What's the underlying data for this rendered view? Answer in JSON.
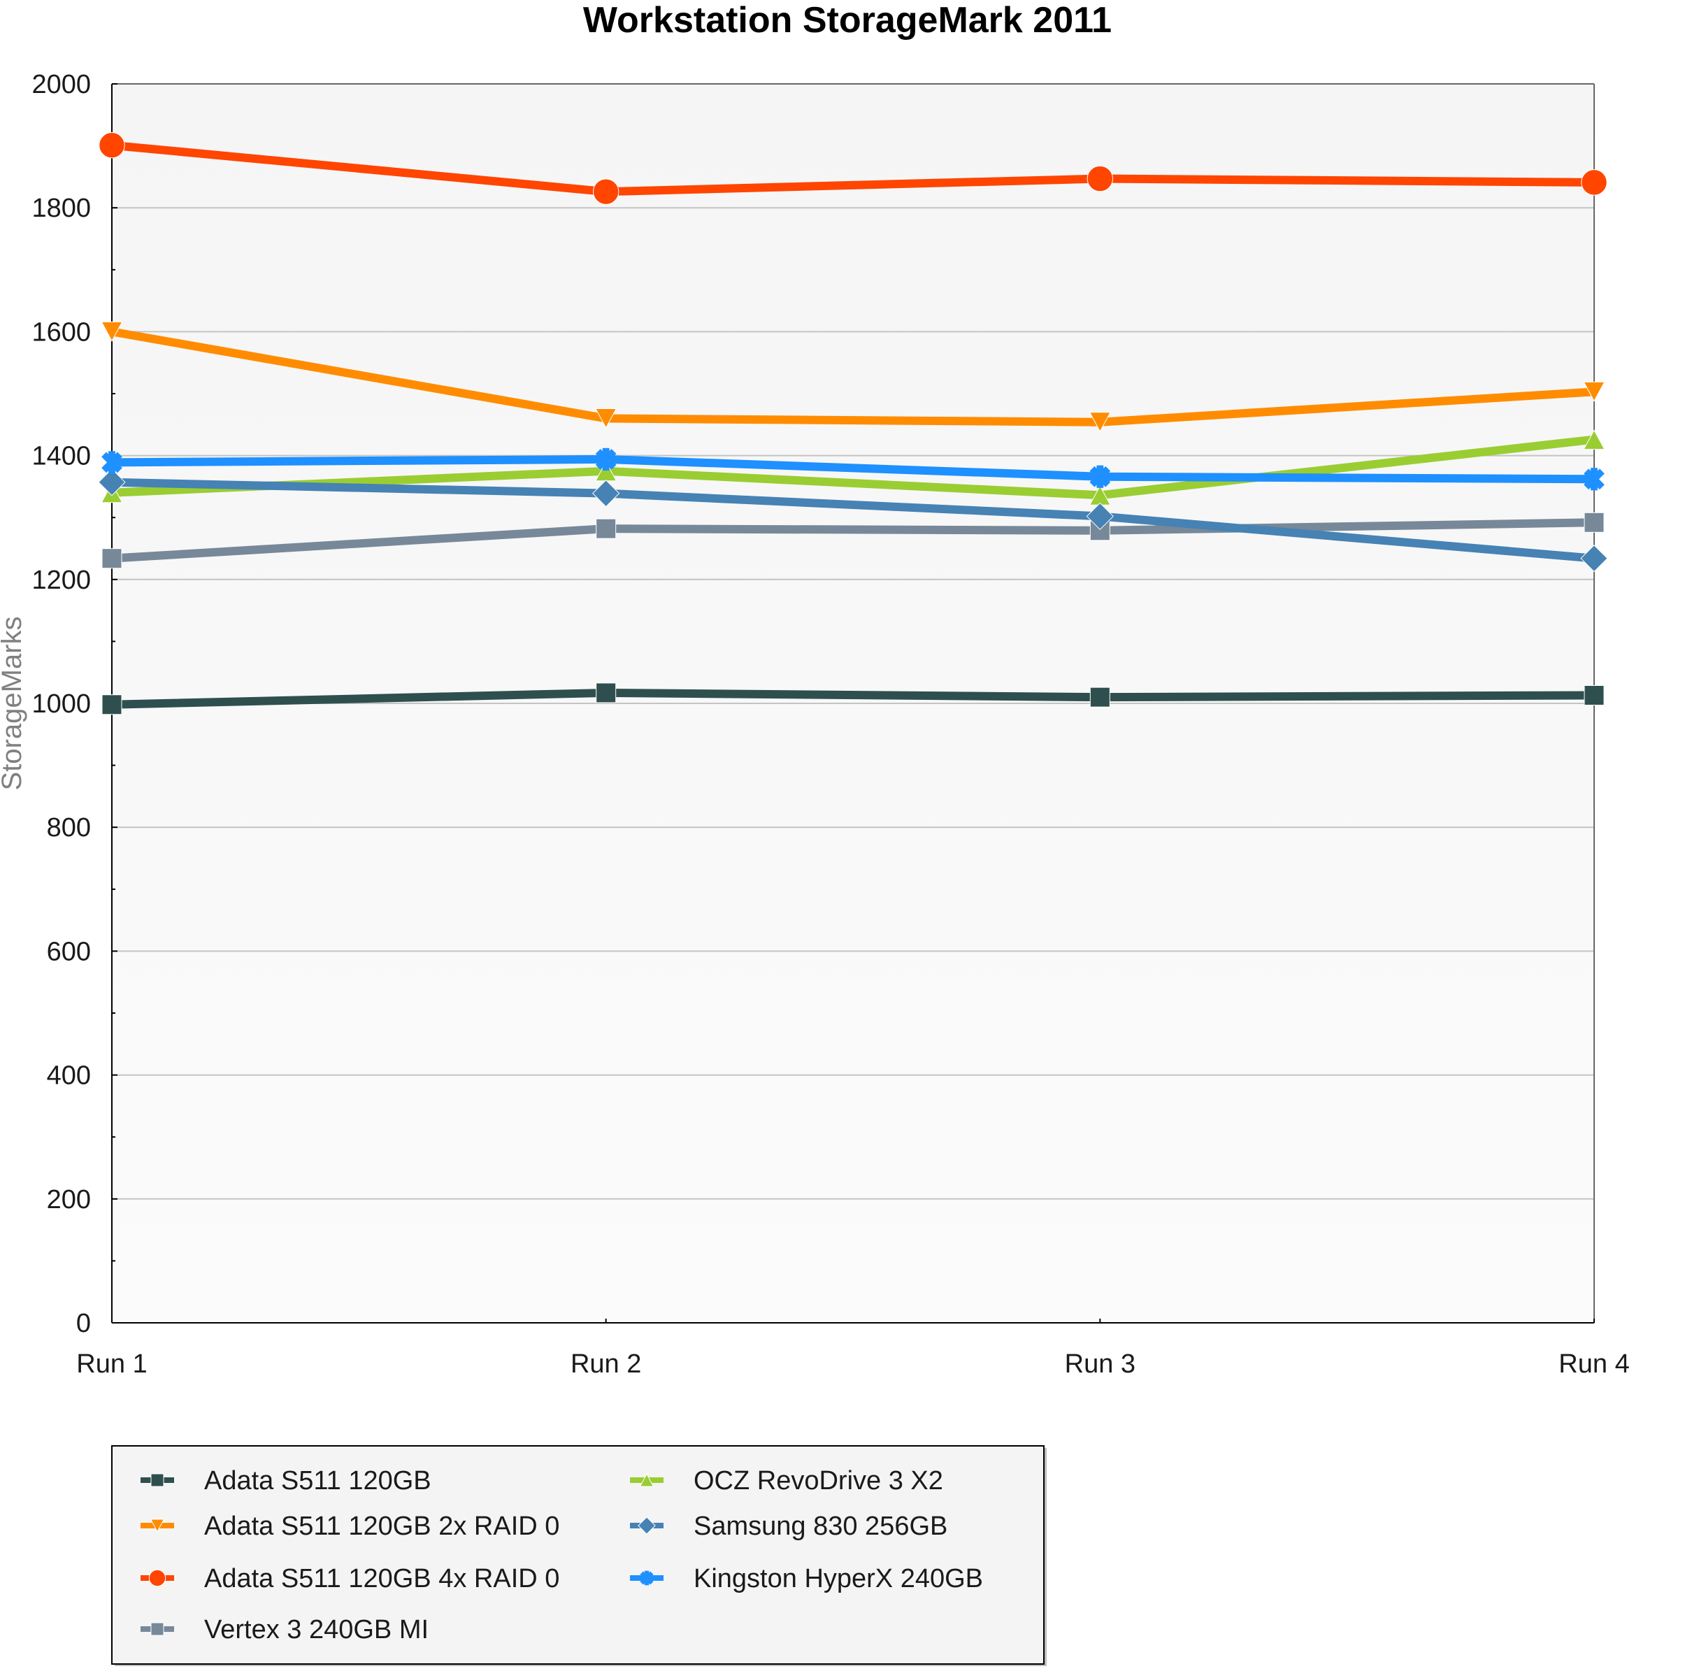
{
  "chart_data": {
    "type": "line",
    "title": "Workstation StorageMark 2011",
    "xlabel": "",
    "ylabel": "StorageMarks",
    "categories": [
      "Run 1",
      "Run 2",
      "Run 3",
      "Run 4"
    ],
    "ylim": [
      0,
      2000
    ],
    "yticks": [
      0,
      200,
      400,
      600,
      800,
      1000,
      1200,
      1400,
      1600,
      1800,
      2000
    ],
    "ytick_labels": [
      "0",
      "200",
      "400",
      "600",
      "800",
      "1000",
      "1200",
      "1400",
      "1600",
      "1800",
      "2000"
    ],
    "minor_tick_step": 100,
    "grid": true,
    "legend_position": "bottom-left",
    "series": [
      {
        "name": "Adata S511 120GB",
        "color": "#2F4F4F",
        "marker": "square",
        "values": [
          998,
          1017,
          1010,
          1013
        ]
      },
      {
        "name": "Adata S511 120GB 2x RAID 0",
        "color": "#FF8C00",
        "marker": "triangle-down",
        "values": [
          1600,
          1460,
          1454,
          1503
        ]
      },
      {
        "name": "Adata S511 120GB 4x RAID 0",
        "color": "#FF4500",
        "marker": "circle",
        "values": [
          1901,
          1826,
          1847,
          1841
        ]
      },
      {
        "name": "Vertex 3 240GB MI",
        "color": "#778899",
        "marker": "square",
        "values": [
          1234,
          1282,
          1279,
          1292
        ]
      },
      {
        "name": "OCZ RevoDrive 3 X2",
        "color": "#9ACD32",
        "marker": "triangle-up",
        "values": [
          1340,
          1375,
          1336,
          1426
        ]
      },
      {
        "name": "Samsung 830 256GB",
        "color": "#4682B4",
        "marker": "diamond",
        "values": [
          1357,
          1339,
          1302,
          1234
        ]
      },
      {
        "name": "Kingston HyperX 240GB",
        "color": "#1E90FF",
        "marker": "star",
        "values": [
          1389,
          1394,
          1366,
          1362
        ]
      }
    ]
  }
}
